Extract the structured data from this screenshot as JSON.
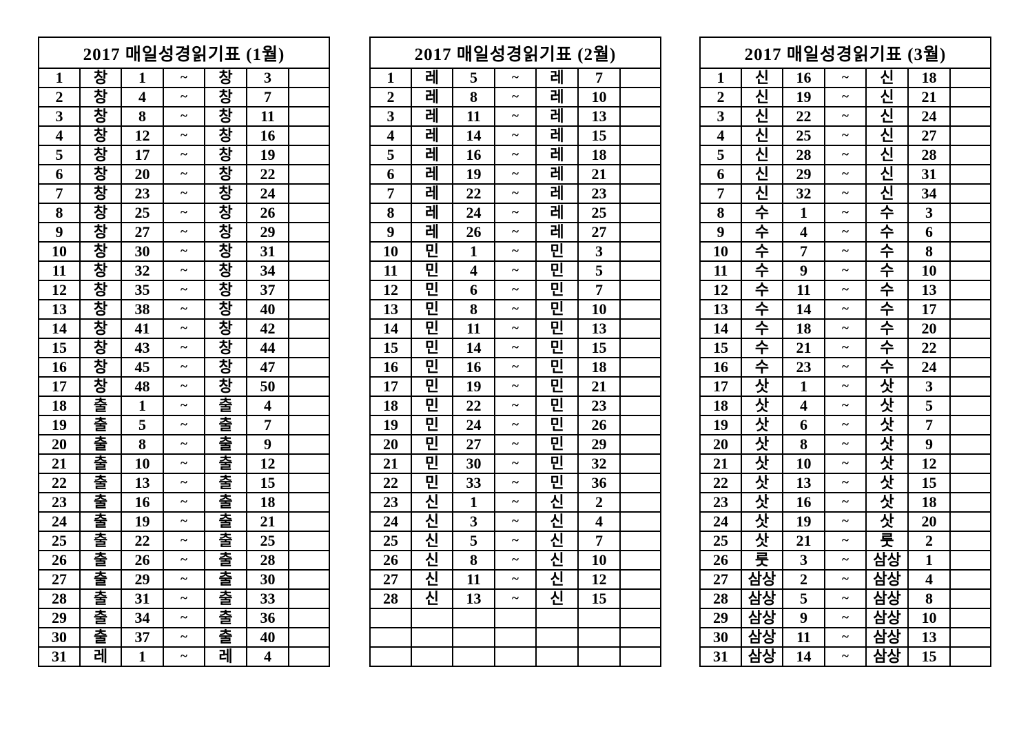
{
  "page": {
    "background_color": "#ffffff",
    "text_color": "#000000",
    "border_color": "#000000"
  },
  "tables": [
    {
      "title": "2017 매일성경읽기표 (1월)",
      "rows": [
        [
          "1",
          "창",
          "1",
          "~",
          "창",
          "3",
          ""
        ],
        [
          "2",
          "창",
          "4",
          "~",
          "창",
          "7",
          ""
        ],
        [
          "3",
          "창",
          "8",
          "~",
          "창",
          "11",
          ""
        ],
        [
          "4",
          "창",
          "12",
          "~",
          "창",
          "16",
          ""
        ],
        [
          "5",
          "창",
          "17",
          "~",
          "창",
          "19",
          ""
        ],
        [
          "6",
          "창",
          "20",
          "~",
          "창",
          "22",
          ""
        ],
        [
          "7",
          "창",
          "23",
          "~",
          "창",
          "24",
          ""
        ],
        [
          "8",
          "창",
          "25",
          "~",
          "창",
          "26",
          ""
        ],
        [
          "9",
          "창",
          "27",
          "~",
          "창",
          "29",
          ""
        ],
        [
          "10",
          "창",
          "30",
          "~",
          "창",
          "31",
          ""
        ],
        [
          "11",
          "창",
          "32",
          "~",
          "창",
          "34",
          ""
        ],
        [
          "12",
          "창",
          "35",
          "~",
          "창",
          "37",
          ""
        ],
        [
          "13",
          "창",
          "38",
          "~",
          "창",
          "40",
          ""
        ],
        [
          "14",
          "창",
          "41",
          "~",
          "창",
          "42",
          ""
        ],
        [
          "15",
          "창",
          "43",
          "~",
          "창",
          "44",
          ""
        ],
        [
          "16",
          "창",
          "45",
          "~",
          "창",
          "47",
          ""
        ],
        [
          "17",
          "창",
          "48",
          "~",
          "창",
          "50",
          ""
        ],
        [
          "18",
          "출",
          "1",
          "~",
          "출",
          "4",
          ""
        ],
        [
          "19",
          "출",
          "5",
          "~",
          "출",
          "7",
          ""
        ],
        [
          "20",
          "출",
          "8",
          "~",
          "출",
          "9",
          ""
        ],
        [
          "21",
          "출",
          "10",
          "~",
          "출",
          "12",
          ""
        ],
        [
          "22",
          "출",
          "13",
          "~",
          "출",
          "15",
          ""
        ],
        [
          "23",
          "출",
          "16",
          "~",
          "출",
          "18",
          ""
        ],
        [
          "24",
          "출",
          "19",
          "~",
          "출",
          "21",
          ""
        ],
        [
          "25",
          "출",
          "22",
          "~",
          "출",
          "25",
          ""
        ],
        [
          "26",
          "출",
          "26",
          "~",
          "출",
          "28",
          ""
        ],
        [
          "27",
          "출",
          "29",
          "~",
          "출",
          "30",
          ""
        ],
        [
          "28",
          "출",
          "31",
          "~",
          "출",
          "33",
          ""
        ],
        [
          "29",
          "출",
          "34",
          "~",
          "출",
          "36",
          ""
        ],
        [
          "30",
          "출",
          "37",
          "~",
          "출",
          "40",
          ""
        ],
        [
          "31",
          "레",
          "1",
          "~",
          "레",
          "4",
          ""
        ]
      ]
    },
    {
      "title": "2017 매일성경읽기표 (2월)",
      "rows": [
        [
          "1",
          "레",
          "5",
          "~",
          "레",
          "7",
          ""
        ],
        [
          "2",
          "레",
          "8",
          "~",
          "레",
          "10",
          ""
        ],
        [
          "3",
          "레",
          "11",
          "~",
          "레",
          "13",
          ""
        ],
        [
          "4",
          "레",
          "14",
          "~",
          "레",
          "15",
          ""
        ],
        [
          "5",
          "레",
          "16",
          "~",
          "레",
          "18",
          ""
        ],
        [
          "6",
          "레",
          "19",
          "~",
          "레",
          "21",
          ""
        ],
        [
          "7",
          "레",
          "22",
          "~",
          "레",
          "23",
          ""
        ],
        [
          "8",
          "레",
          "24",
          "~",
          "레",
          "25",
          ""
        ],
        [
          "9",
          "레",
          "26",
          "~",
          "레",
          "27",
          ""
        ],
        [
          "10",
          "민",
          "1",
          "~",
          "민",
          "3",
          ""
        ],
        [
          "11",
          "민",
          "4",
          "~",
          "민",
          "5",
          ""
        ],
        [
          "12",
          "민",
          "6",
          "~",
          "민",
          "7",
          ""
        ],
        [
          "13",
          "민",
          "8",
          "~",
          "민",
          "10",
          ""
        ],
        [
          "14",
          "민",
          "11",
          "~",
          "민",
          "13",
          ""
        ],
        [
          "15",
          "민",
          "14",
          "~",
          "민",
          "15",
          ""
        ],
        [
          "16",
          "민",
          "16",
          "~",
          "민",
          "18",
          ""
        ],
        [
          "17",
          "민",
          "19",
          "~",
          "민",
          "21",
          ""
        ],
        [
          "18",
          "민",
          "22",
          "~",
          "민",
          "23",
          ""
        ],
        [
          "19",
          "민",
          "24",
          "~",
          "민",
          "26",
          ""
        ],
        [
          "20",
          "민",
          "27",
          "~",
          "민",
          "29",
          ""
        ],
        [
          "21",
          "민",
          "30",
          "~",
          "민",
          "32",
          ""
        ],
        [
          "22",
          "민",
          "33",
          "~",
          "민",
          "36",
          ""
        ],
        [
          "23",
          "신",
          "1",
          "~",
          "신",
          "2",
          ""
        ],
        [
          "24",
          "신",
          "3",
          "~",
          "신",
          "4",
          ""
        ],
        [
          "25",
          "신",
          "5",
          "~",
          "신",
          "7",
          ""
        ],
        [
          "26",
          "신",
          "8",
          "~",
          "신",
          "10",
          ""
        ],
        [
          "27",
          "신",
          "11",
          "~",
          "신",
          "12",
          ""
        ],
        [
          "28",
          "신",
          "13",
          "~",
          "신",
          "15",
          ""
        ],
        [
          "",
          "",
          "",
          "",
          "",
          "",
          ""
        ],
        [
          "",
          "",
          "",
          "",
          "",
          "",
          ""
        ],
        [
          "",
          "",
          "",
          "",
          "",
          "",
          ""
        ]
      ]
    },
    {
      "title": "2017 매일성경읽기표 (3월)",
      "rows": [
        [
          "1",
          "신",
          "16",
          "~",
          "신",
          "18",
          ""
        ],
        [
          "2",
          "신",
          "19",
          "~",
          "신",
          "21",
          ""
        ],
        [
          "3",
          "신",
          "22",
          "~",
          "신",
          "24",
          ""
        ],
        [
          "4",
          "신",
          "25",
          "~",
          "신",
          "27",
          ""
        ],
        [
          "5",
          "신",
          "28",
          "~",
          "신",
          "28",
          ""
        ],
        [
          "6",
          "신",
          "29",
          "~",
          "신",
          "31",
          ""
        ],
        [
          "7",
          "신",
          "32",
          "~",
          "신",
          "34",
          ""
        ],
        [
          "8",
          "수",
          "1",
          "~",
          "수",
          "3",
          ""
        ],
        [
          "9",
          "수",
          "4",
          "~",
          "수",
          "6",
          ""
        ],
        [
          "10",
          "수",
          "7",
          "~",
          "수",
          "8",
          ""
        ],
        [
          "11",
          "수",
          "9",
          "~",
          "수",
          "10",
          ""
        ],
        [
          "12",
          "수",
          "11",
          "~",
          "수",
          "13",
          ""
        ],
        [
          "13",
          "수",
          "14",
          "~",
          "수",
          "17",
          ""
        ],
        [
          "14",
          "수",
          "18",
          "~",
          "수",
          "20",
          ""
        ],
        [
          "15",
          "수",
          "21",
          "~",
          "수",
          "22",
          ""
        ],
        [
          "16",
          "수",
          "23",
          "~",
          "수",
          "24",
          ""
        ],
        [
          "17",
          "삿",
          "1",
          "~",
          "삿",
          "3",
          ""
        ],
        [
          "18",
          "삿",
          "4",
          "~",
          "삿",
          "5",
          ""
        ],
        [
          "19",
          "삿",
          "6",
          "~",
          "삿",
          "7",
          ""
        ],
        [
          "20",
          "삿",
          "8",
          "~",
          "삿",
          "9",
          ""
        ],
        [
          "21",
          "삿",
          "10",
          "~",
          "삿",
          "12",
          ""
        ],
        [
          "22",
          "삿",
          "13",
          "~",
          "삿",
          "15",
          ""
        ],
        [
          "23",
          "삿",
          "16",
          "~",
          "삿",
          "18",
          ""
        ],
        [
          "24",
          "삿",
          "19",
          "~",
          "삿",
          "20",
          ""
        ],
        [
          "25",
          "삿",
          "21",
          "~",
          "룻",
          "2",
          ""
        ],
        [
          "26",
          "룻",
          "3",
          "~",
          "삼상",
          "1",
          ""
        ],
        [
          "27",
          "삼상",
          "2",
          "~",
          "삼상",
          "4",
          ""
        ],
        [
          "28",
          "삼상",
          "5",
          "~",
          "삼상",
          "8",
          ""
        ],
        [
          "29",
          "삼상",
          "9",
          "~",
          "삼상",
          "10",
          ""
        ],
        [
          "30",
          "삼상",
          "11",
          "~",
          "삼상",
          "13",
          ""
        ],
        [
          "31",
          "삼상",
          "14",
          "~",
          "삼상",
          "15",
          ""
        ]
      ]
    }
  ]
}
